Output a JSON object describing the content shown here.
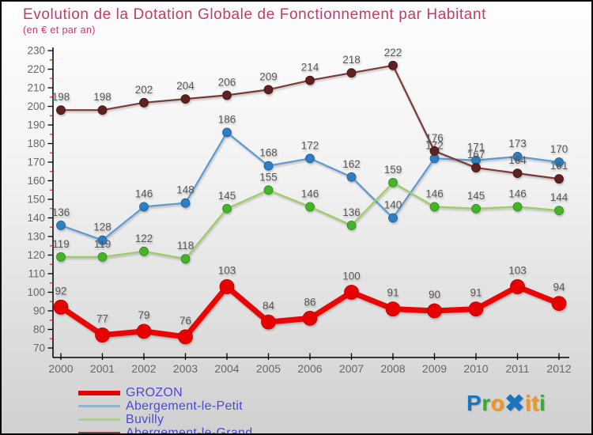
{
  "title": "Evolution de la Dotation Globale de Fonctionnement par Habitant",
  "subtitle": "(en € et par an)",
  "colors": {
    "title_text": "#c43a6a",
    "data_label": "#575757",
    "tick_label": "#666666",
    "axis_line": "#000000",
    "minor_tick": "#ee1111",
    "legend_text": "#4a4ad8",
    "background_top": "#fefefe",
    "background_bottom": "#d0d0d0"
  },
  "chart_data": {
    "type": "line",
    "title": "Evolution de la Dotation Globale de Fonctionnement par Habitant",
    "subtitle": "(en € et par an)",
    "xlabel": "",
    "ylabel": "",
    "x": [
      2000,
      2001,
      2002,
      2003,
      2004,
      2005,
      2006,
      2007,
      2008,
      2009,
      2010,
      2011,
      2012
    ],
    "ylim": [
      70,
      230
    ],
    "ytick_step": 10,
    "yminor_step": 5,
    "grid": false,
    "legend_position": "bottom-left",
    "draw_order": [
      1,
      2,
      3,
      0
    ],
    "series": [
      {
        "name": "GROZON",
        "values": [
          92,
          77,
          79,
          76,
          103,
          84,
          86,
          100,
          91,
          90,
          91,
          103,
          94
        ],
        "line_color": "#ea0404",
        "point_color": "#e60000",
        "point_stroke": "#c00000",
        "swatch_color": "#e60000",
        "line_width": 7,
        "point_radius": 9
      },
      {
        "name": "Abergement-le-Petit",
        "values": [
          136,
          128,
          146,
          148,
          186,
          168,
          172,
          162,
          140,
          172,
          171,
          173,
          170
        ],
        "line_color": "#5b9bd5",
        "point_color": "#2e7fc2",
        "point_stroke": "#1f5f96",
        "swatch_color": "#92b4cb",
        "line_width": 2.2,
        "point_radius": 5.5
      },
      {
        "name": "Buvilly",
        "values": [
          119,
          119,
          122,
          118,
          145,
          155,
          146,
          136,
          159,
          146,
          145,
          146,
          144
        ],
        "line_color": "#9bce62",
        "point_color": "#46b42a",
        "point_stroke": "#2f8c1c",
        "swatch_color": "#a6d877",
        "line_width": 2.2,
        "point_radius": 5.5
      },
      {
        "name": "Abergement-le-Grand",
        "values": [
          198,
          198,
          202,
          204,
          206,
          209,
          214,
          218,
          222,
          176,
          167,
          164,
          161
        ],
        "line_color": "#7a3b38",
        "point_color": "#5e2220",
        "point_stroke": "#431413",
        "swatch_color": "#8a4a42",
        "line_width": 2.2,
        "point_radius": 5.5
      }
    ]
  },
  "logo": {
    "name": "proxiti",
    "letters": [
      {
        "ch": "P",
        "color": "#1b75bc",
        "bold": false
      },
      {
        "ch": "r",
        "color": "#3aaa35",
        "bold": false
      },
      {
        "ch": "o",
        "color": "#f7941d",
        "bold": false
      },
      {
        "ch": "✖",
        "color": "#1b75bc",
        "bold": true
      },
      {
        "ch": "i",
        "color": "#f7941d",
        "bold": false
      },
      {
        "ch": "t",
        "color": "#f7941d",
        "bold": false
      },
      {
        "ch": "i",
        "color": "#3aaa35",
        "bold": false
      }
    ]
  }
}
